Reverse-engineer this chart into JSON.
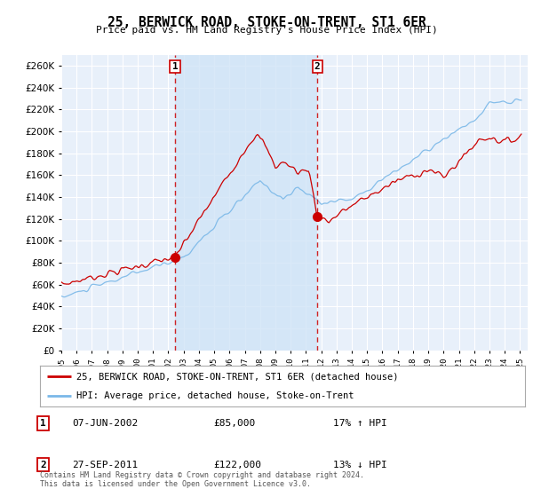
{
  "title": "25, BERWICK ROAD, STOKE-ON-TRENT, ST1 6ER",
  "subtitle": "Price paid vs. HM Land Registry's House Price Index (HPI)",
  "ylim": [
    0,
    270000
  ],
  "yticks": [
    0,
    20000,
    40000,
    60000,
    80000,
    100000,
    120000,
    140000,
    160000,
    180000,
    200000,
    220000,
    240000,
    260000
  ],
  "bg_color": "#e8f0fa",
  "grid_color": "#c8d8ee",
  "legend_entry1": "25, BERWICK ROAD, STOKE-ON-TRENT, ST1 6ER (detached house)",
  "legend_entry2": "HPI: Average price, detached house, Stoke-on-Trent",
  "transaction1_date": "07-JUN-2002",
  "transaction1_price": "£85,000",
  "transaction1_hpi": "17% ↑ HPI",
  "transaction2_date": "27-SEP-2011",
  "transaction2_price": "£122,000",
  "transaction2_hpi": "13% ↓ HPI",
  "footer": "Contains HM Land Registry data © Crown copyright and database right 2024.\nThis data is licensed under the Open Government Licence v3.0.",
  "sale1_year": 2002.44,
  "sale1_price": 85000,
  "sale2_year": 2011.74,
  "sale2_price": 122000,
  "hpi_color": "#7ab8e8",
  "price_color": "#cc0000",
  "sale_dot_color": "#cc0000",
  "highlight_color": "#d0e4f7"
}
